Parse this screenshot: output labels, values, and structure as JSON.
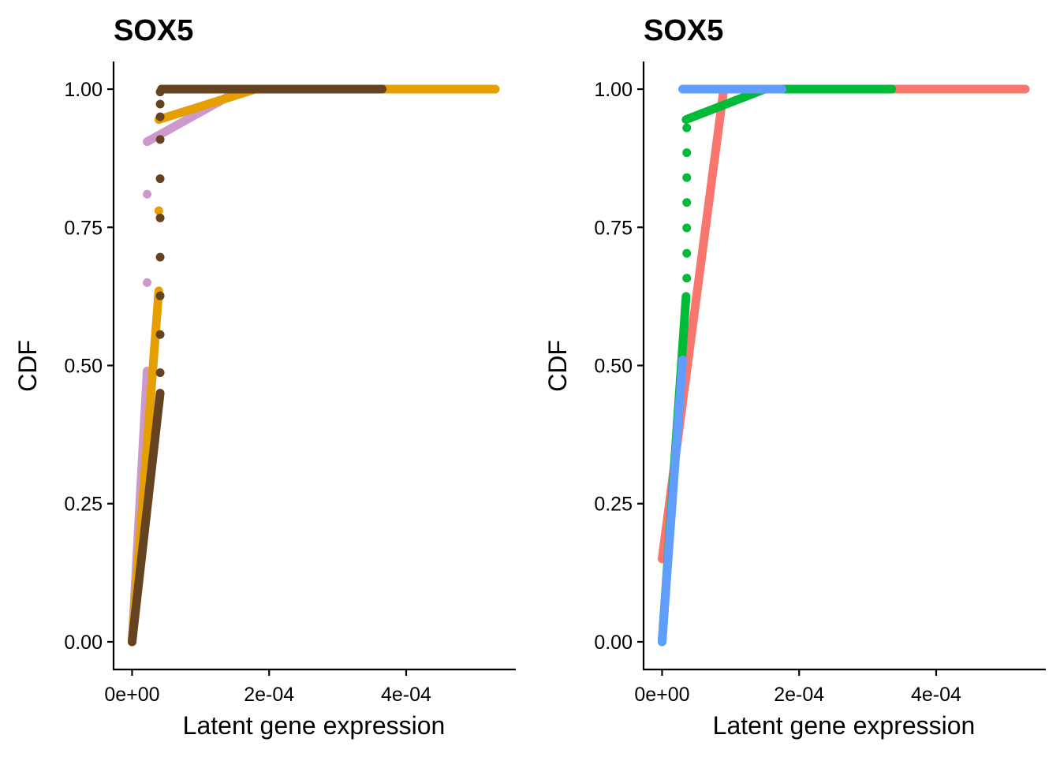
{
  "chart_data": [
    {
      "type": "scatter",
      "title": "SOX5",
      "xlabel": "Latent gene expression",
      "ylabel": "CDF",
      "xlim": [
        -2.7e-05,
        0.00056
      ],
      "ylim": [
        -0.05,
        1.05
      ],
      "xticks": [
        0,
        0.0002,
        0.0004
      ],
      "xtick_labels": [
        "0e+00",
        "2e-04",
        "4e-04"
      ],
      "yticks": [
        0,
        0.25,
        0.5,
        0.75,
        1
      ],
      "ytick_labels": [
        "0.00",
        "0.25",
        "0.50",
        "0.75",
        "1.00"
      ],
      "series": [
        {
          "name": "series-1",
          "color": "#CC99CC",
          "segments": [
            {
              "x": [
                0.0,
                2.2e-05
              ],
              "y": [
                0.0,
                0.49
              ]
            },
            {
              "x": [
                2.2e-05,
                0.00016
              ],
              "y": [
                0.905,
                1.0
              ]
            }
          ],
          "points": [
            {
              "x": 2.2e-05,
              "y": 0.65
            },
            {
              "x": 2.2e-05,
              "y": 0.81
            }
          ]
        },
        {
          "name": "series-2",
          "color": "#E69F00",
          "segments": [
            {
              "x": [
                0.0,
                3.9e-05
              ],
              "y": [
                0.0,
                0.635
              ]
            },
            {
              "x": [
                3.9e-05,
                0.00018
              ],
              "y": [
                0.945,
                1.0
              ]
            },
            {
              "x": [
                0.00018,
                0.00053
              ],
              "y": [
                1.0,
                1.0
              ]
            }
          ],
          "points": [
            {
              "x": 3.9e-05,
              "y": 0.78
            }
          ]
        },
        {
          "name": "series-3",
          "color": "#654321",
          "segments": [
            {
              "x": [
                0.0,
                4.1e-05
              ],
              "y": [
                0.0,
                0.45
              ]
            },
            {
              "x": [
                4.3e-05,
                0.000365
              ],
              "y": [
                1.0,
                1.0
              ]
            }
          ],
          "points": [
            {
              "x": 4.1e-05,
              "y": 0.487
            },
            {
              "x": 4.1e-05,
              "y": 0.556
            },
            {
              "x": 4.1e-05,
              "y": 0.626
            },
            {
              "x": 4.1e-05,
              "y": 0.696
            },
            {
              "x": 4.1e-05,
              "y": 0.767
            },
            {
              "x": 4.1e-05,
              "y": 0.838
            },
            {
              "x": 4.1e-05,
              "y": 0.909
            },
            {
              "x": 4.1e-05,
              "y": 0.95
            },
            {
              "x": 4.1e-05,
              "y": 0.973
            },
            {
              "x": 4.1e-05,
              "y": 0.995
            }
          ]
        }
      ]
    },
    {
      "type": "scatter",
      "title": "SOX5",
      "xlabel": "Latent gene expression",
      "ylabel": "CDF",
      "xlim": [
        -2.7e-05,
        0.00056
      ],
      "ylim": [
        -0.05,
        1.05
      ],
      "xticks": [
        0,
        0.0002,
        0.0004
      ],
      "xtick_labels": [
        "0e+00",
        "2e-04",
        "4e-04"
      ],
      "yticks": [
        0,
        0.25,
        0.5,
        0.75,
        1
      ],
      "ytick_labels": [
        "0.00",
        "0.25",
        "0.50",
        "0.75",
        "1.00"
      ],
      "series": [
        {
          "name": "series-1",
          "color": "#F8766D",
          "segments": [
            {
              "x": [
                0.0,
                9e-05
              ],
              "y": [
                0.15,
                1.0
              ]
            },
            {
              "x": [
                9e-05,
                0.00053
              ],
              "y": [
                1.0,
                1.0
              ]
            }
          ],
          "points": []
        },
        {
          "name": "series-2",
          "color": "#00BA38",
          "segments": [
            {
              "x": [
                0.0,
                3.5e-05
              ],
              "y": [
                0.0,
                0.625
              ]
            },
            {
              "x": [
                3.5e-05,
                0.00015
              ],
              "y": [
                0.945,
                1.0
              ]
            },
            {
              "x": [
                0.00015,
                0.000335
              ],
              "y": [
                1.0,
                1.0
              ]
            }
          ],
          "points": [
            {
              "x": 3.6e-05,
              "y": 0.658
            },
            {
              "x": 3.6e-05,
              "y": 0.703
            },
            {
              "x": 3.6e-05,
              "y": 0.749
            },
            {
              "x": 3.6e-05,
              "y": 0.795
            },
            {
              "x": 3.6e-05,
              "y": 0.84
            },
            {
              "x": 3.6e-05,
              "y": 0.885
            },
            {
              "x": 3.6e-05,
              "y": 0.93
            }
          ]
        },
        {
          "name": "series-3",
          "color": "#619CFF",
          "segments": [
            {
              "x": [
                0.0,
                3e-05
              ],
              "y": [
                0.0,
                0.51
              ]
            },
            {
              "x": [
                3e-05,
                0.000175
              ],
              "y": [
                1.0,
                1.0
              ]
            }
          ],
          "points": []
        }
      ]
    }
  ]
}
